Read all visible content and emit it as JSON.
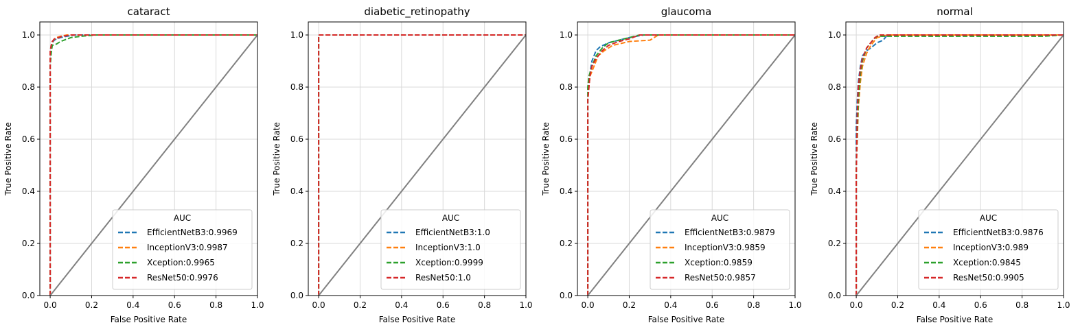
{
  "chart_data": [
    {
      "type": "line",
      "title": "cataract",
      "xlabel": "False Positive Rate",
      "ylabel": "True Positive Rate",
      "xlim": [
        -0.05,
        1.0
      ],
      "ylim": [
        0.0,
        1.05
      ],
      "xticks": [
        "0.0",
        "0.2",
        "0.4",
        "0.6",
        "0.8",
        "1.0"
      ],
      "yticks": [
        "0.0",
        "0.2",
        "0.4",
        "0.6",
        "0.8",
        "1.0"
      ],
      "grid": true,
      "legend_title": "AUC",
      "legend_loc": "lower-right",
      "series": [
        {
          "name": "EfficientNetB3:0.9969",
          "color": "#1f77b4",
          "x": [
            0,
            0,
            0.005,
            0.01,
            0.02,
            0.03,
            0.05,
            0.08,
            0.12,
            1.0
          ],
          "y": [
            0,
            0.9,
            0.95,
            0.97,
            0.98,
            0.985,
            0.99,
            0.995,
            1.0,
            1.0
          ]
        },
        {
          "name": "InceptionV3:0.9987",
          "color": "#ff7f0e",
          "x": [
            0,
            0,
            0.005,
            0.015,
            0.03,
            0.05,
            0.08,
            1.0
          ],
          "y": [
            0,
            0.92,
            0.96,
            0.98,
            0.99,
            0.995,
            1.0,
            1.0
          ]
        },
        {
          "name": "Xception:0.9965",
          "color": "#2ca02c",
          "x": [
            0,
            0,
            0.005,
            0.01,
            0.03,
            0.05,
            0.1,
            0.15,
            0.22,
            1.0
          ],
          "y": [
            0,
            0.88,
            0.93,
            0.96,
            0.965,
            0.975,
            0.99,
            0.995,
            1.0,
            1.0
          ]
        },
        {
          "name": "ResNet50:0.9976",
          "color": "#d62728",
          "x": [
            0,
            0,
            0.005,
            0.01,
            0.02,
            0.04,
            0.06,
            0.1,
            1.0
          ],
          "y": [
            0,
            0.94,
            0.96,
            0.975,
            0.985,
            0.99,
            0.995,
            1.0,
            1.0
          ]
        },
        {
          "name": "",
          "color": "#808080",
          "style": "solid",
          "x": [
            0,
            1
          ],
          "y": [
            0,
            1
          ]
        }
      ]
    },
    {
      "type": "line",
      "title": "diabetic_retinopathy",
      "xlabel": "False Positive Rate",
      "ylabel": "True Positive Rate",
      "xlim": [
        -0.05,
        1.0
      ],
      "ylim": [
        0.0,
        1.05
      ],
      "xticks": [
        "0.0",
        "0.2",
        "0.4",
        "0.6",
        "0.8",
        "1.0"
      ],
      "yticks": [
        "0.0",
        "0.2",
        "0.4",
        "0.6",
        "0.8",
        "1.0"
      ],
      "grid": true,
      "legend_title": "AUC",
      "legend_loc": "lower-right",
      "series": [
        {
          "name": "EfficientNetB3:1.0",
          "color": "#1f77b4",
          "x": [
            0,
            0,
            1.0
          ],
          "y": [
            0,
            1.0,
            1.0
          ]
        },
        {
          "name": "InceptionV3:1.0",
          "color": "#ff7f0e",
          "x": [
            0,
            0,
            1.0
          ],
          "y": [
            0,
            1.0,
            1.0
          ]
        },
        {
          "name": "Xception:0.9999",
          "color": "#2ca02c",
          "x": [
            0,
            0,
            1.0
          ],
          "y": [
            0,
            1.0,
            1.0
          ]
        },
        {
          "name": "ResNet50:1.0",
          "color": "#d62728",
          "x": [
            0,
            0,
            1.0
          ],
          "y": [
            0,
            1.0,
            1.0
          ]
        },
        {
          "name": "",
          "color": "#808080",
          "style": "solid",
          "x": [
            0,
            1
          ],
          "y": [
            0,
            1
          ]
        }
      ]
    },
    {
      "type": "line",
      "title": "glaucoma",
      "xlabel": "False Positive Rate",
      "ylabel": "True Positive Rate",
      "xlim": [
        -0.05,
        1.0
      ],
      "ylim": [
        0.0,
        1.05
      ],
      "xticks": [
        "0.0",
        "0.2",
        "0.4",
        "0.6",
        "0.8",
        "1.0"
      ],
      "yticks": [
        "0.0",
        "0.2",
        "0.4",
        "0.6",
        "0.8",
        "1.0"
      ],
      "grid": true,
      "legend_title": "AUC",
      "legend_loc": "lower-right",
      "series": [
        {
          "name": "EfficientNetB3:0.9879",
          "color": "#1f77b4",
          "x": [
            0,
            0,
            0.01,
            0.02,
            0.04,
            0.06,
            0.1,
            0.15,
            0.2,
            0.27,
            1.0
          ],
          "y": [
            0,
            0.76,
            0.85,
            0.9,
            0.94,
            0.955,
            0.97,
            0.98,
            0.99,
            1.0,
            1.0
          ]
        },
        {
          "name": "InceptionV3:0.9859",
          "color": "#ff7f0e",
          "x": [
            0,
            0,
            0.01,
            0.03,
            0.05,
            0.08,
            0.12,
            0.2,
            0.3,
            0.34,
            1.0
          ],
          "y": [
            0,
            0.75,
            0.84,
            0.88,
            0.92,
            0.94,
            0.96,
            0.975,
            0.98,
            1.0,
            1.0
          ]
        },
        {
          "name": "Xception:0.9859",
          "color": "#2ca02c",
          "x": [
            0,
            0,
            0.005,
            0.02,
            0.04,
            0.07,
            0.1,
            0.15,
            0.2,
            0.25,
            1.0
          ],
          "y": [
            0,
            0.8,
            0.84,
            0.88,
            0.92,
            0.95,
            0.97,
            0.98,
            0.99,
            1.0,
            1.0
          ]
        },
        {
          "name": "ResNet50:0.9857",
          "color": "#d62728",
          "x": [
            0,
            0,
            0.01,
            0.02,
            0.04,
            0.07,
            0.1,
            0.15,
            0.2,
            0.25,
            1.0
          ],
          "y": [
            0,
            0.75,
            0.84,
            0.88,
            0.91,
            0.94,
            0.96,
            0.975,
            0.985,
            1.0,
            1.0
          ]
        },
        {
          "name": "",
          "color": "#808080",
          "style": "solid",
          "x": [
            0,
            1
          ],
          "y": [
            0,
            1
          ]
        }
      ]
    },
    {
      "type": "line",
      "title": "normal",
      "xlabel": "False Positive Rate",
      "ylabel": "True Positive Rate",
      "xlim": [
        -0.05,
        1.0
      ],
      "ylim": [
        0.0,
        1.05
      ],
      "xticks": [
        "0.0",
        "0.2",
        "0.4",
        "0.6",
        "0.8",
        "1.0"
      ],
      "yticks": [
        "0.0",
        "0.2",
        "0.4",
        "0.6",
        "0.8",
        "1.0"
      ],
      "grid": true,
      "legend_title": "AUC",
      "legend_loc": "lower-right",
      "series": [
        {
          "name": "EfficientNetB3:0.9876",
          "color": "#1f77b4",
          "x": [
            0,
            0,
            0.005,
            0.01,
            0.02,
            0.03,
            0.05,
            0.07,
            0.1,
            0.13,
            0.15,
            1.0
          ],
          "y": [
            0,
            0.65,
            0.75,
            0.82,
            0.88,
            0.92,
            0.94,
            0.95,
            0.97,
            0.98,
            1.0,
            1.0
          ]
        },
        {
          "name": "InceptionV3:0.989",
          "color": "#ff7f0e",
          "x": [
            0,
            0,
            0.01,
            0.02,
            0.03,
            0.05,
            0.07,
            0.1,
            0.15,
            1.0
          ],
          "y": [
            0,
            0.48,
            0.72,
            0.82,
            0.88,
            0.93,
            0.96,
            0.99,
            1.0,
            1.0
          ]
        },
        {
          "name": "Xception:0.9845",
          "color": "#2ca02c",
          "x": [
            0,
            0,
            0.01,
            0.02,
            0.03,
            0.05,
            0.08,
            0.1,
            0.9,
            1.0
          ],
          "y": [
            0,
            0.5,
            0.75,
            0.85,
            0.9,
            0.95,
            0.98,
            0.995,
            0.995,
            1.0
          ]
        },
        {
          "name": "ResNet50:0.9905",
          "color": "#d62728",
          "x": [
            0,
            0,
            0.005,
            0.01,
            0.02,
            0.03,
            0.05,
            0.07,
            0.09,
            0.11,
            1.0
          ],
          "y": [
            0,
            0.45,
            0.7,
            0.8,
            0.87,
            0.91,
            0.95,
            0.97,
            0.99,
            1.0,
            1.0
          ]
        },
        {
          "name": "",
          "color": "#808080",
          "style": "solid",
          "x": [
            0,
            1
          ],
          "y": [
            0,
            1
          ]
        }
      ]
    }
  ]
}
